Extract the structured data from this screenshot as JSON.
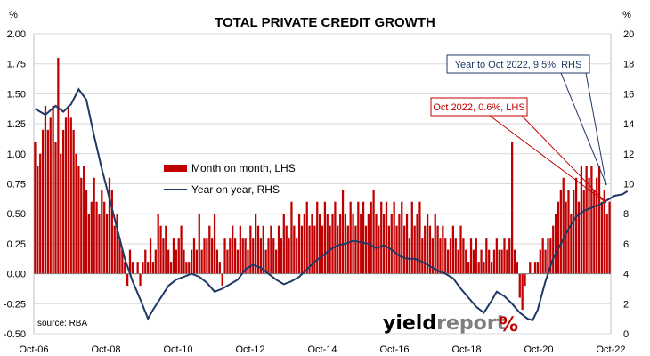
{
  "chart_data": {
    "type": "bar",
    "title": "TOTAL PRIVATE CREDIT GROWTH",
    "left_unit": "%",
    "right_unit": "%",
    "ylim_left": [
      -0.5,
      2.0
    ],
    "ylim_right": [
      0,
      20
    ],
    "left_ticks": [
      "2.00",
      "1.75",
      "1.50",
      "1.25",
      "1.00",
      "0.75",
      "0.50",
      "0.25",
      "0.00",
      "-0.25",
      "-0.50"
    ],
    "right_ticks": [
      "20",
      "18",
      "16",
      "14",
      "12",
      "10",
      "8",
      "6",
      "4",
      "2",
      "0"
    ],
    "x_ticks": [
      "Oct-06",
      "Oct-08",
      "Oct-10",
      "Oct-12",
      "Oct-14",
      "Oct-16",
      "Oct-18",
      "Oct-20",
      "Oct-22"
    ],
    "start_month": "Oct-06",
    "end_month": "Oct-22",
    "grid": true,
    "series": [
      {
        "name": "Month on month, LHS",
        "axis": "left",
        "kind": "bar",
        "color": "#c00000",
        "values": [
          1.1,
          0.9,
          1.0,
          1.2,
          1.4,
          1.2,
          1.3,
          1.4,
          1.1,
          1.8,
          1.0,
          1.2,
          1.3,
          1.4,
          1.3,
          1.2,
          1.0,
          0.9,
          0.8,
          0.9,
          0.7,
          0.5,
          0.6,
          0.8,
          0.6,
          0.5,
          0.7,
          0.6,
          0.5,
          0.8,
          0.7,
          0.4,
          0.5,
          0.3,
          0.2,
          0.1,
          -0.1,
          0.2,
          0.1,
          0.0,
          0.1,
          -0.1,
          0.1,
          0.2,
          0.1,
          0.3,
          0.1,
          0.2,
          0.5,
          0.4,
          0.3,
          0.4,
          0.2,
          0.1,
          0.3,
          0.2,
          0.3,
          0.4,
          0.2,
          0.1,
          0.1,
          0.2,
          0.3,
          0.2,
          0.5,
          0.2,
          0.3,
          0.3,
          0.4,
          0.3,
          0.5,
          0.2,
          0.1,
          -0.1,
          0.3,
          0.2,
          0.3,
          0.4,
          0.3,
          0.2,
          0.4,
          0.3,
          0.3,
          0.2,
          0.4,
          0.3,
          0.5,
          0.4,
          0.3,
          0.4,
          0.2,
          0.3,
          0.4,
          0.3,
          0.2,
          0.4,
          0.3,
          0.5,
          0.4,
          0.3,
          0.6,
          0.4,
          0.3,
          0.5,
          0.4,
          0.5,
          0.6,
          0.4,
          0.5,
          0.4,
          0.6,
          0.5,
          0.4,
          0.6,
          0.5,
          0.4,
          0.5,
          0.6,
          0.4,
          0.5,
          0.7,
          0.5,
          0.4,
          0.6,
          0.5,
          0.4,
          0.6,
          0.5,
          0.6,
          0.4,
          0.5,
          0.6,
          0.7,
          0.5,
          0.4,
          0.6,
          0.5,
          0.6,
          0.4,
          0.5,
          0.6,
          0.4,
          0.5,
          0.6,
          0.4,
          0.5,
          0.3,
          0.6,
          0.4,
          0.5,
          0.6,
          0.3,
          0.4,
          0.5,
          0.4,
          0.3,
          0.5,
          0.4,
          0.3,
          0.4,
          0.3,
          0.2,
          0.3,
          0.4,
          0.3,
          0.2,
          0.4,
          0.3,
          0.2,
          0.1,
          0.3,
          0.2,
          0.3,
          0.1,
          0.2,
          0.1,
          0.3,
          0.2,
          0.1,
          0.2,
          0.3,
          0.2,
          0.2,
          0.3,
          0.2,
          0.3,
          1.1,
          0.2,
          0.1,
          -0.2,
          -0.3,
          -0.1,
          0.0,
          0.1,
          0.0,
          0.1,
          0.1,
          0.2,
          0.3,
          0.2,
          0.3,
          0.3,
          0.4,
          0.5,
          0.6,
          0.7,
          0.8,
          0.6,
          0.7,
          0.5,
          0.7,
          0.8,
          0.6,
          0.9,
          0.7,
          0.9,
          0.8,
          0.9,
          0.7,
          0.8,
          0.9,
          0.6,
          0.7,
          0.5,
          0.6
        ]
      },
      {
        "name": "Year on year, RHS",
        "axis": "right",
        "kind": "line",
        "color": "#1f3864",
        "points": [
          [
            0,
            15.0
          ],
          [
            4,
            14.6
          ],
          [
            8,
            15.2
          ],
          [
            11,
            14.8
          ],
          [
            14,
            15.3
          ],
          [
            17,
            16.3
          ],
          [
            20,
            15.6
          ],
          [
            23,
            13.2
          ],
          [
            26,
            11.0
          ],
          [
            29,
            9.0
          ],
          [
            32,
            7.0
          ],
          [
            35,
            5.0
          ],
          [
            38,
            3.5
          ],
          [
            41,
            2.3
          ],
          [
            44,
            1.0
          ],
          [
            46,
            1.6
          ],
          [
            49,
            2.4
          ],
          [
            52,
            3.2
          ],
          [
            55,
            3.6
          ],
          [
            58,
            3.8
          ],
          [
            61,
            4.0
          ],
          [
            64,
            3.8
          ],
          [
            67,
            3.4
          ],
          [
            70,
            2.8
          ],
          [
            73,
            3.0
          ],
          [
            76,
            3.3
          ],
          [
            79,
            3.6
          ],
          [
            82,
            4.3
          ],
          [
            85,
            4.6
          ],
          [
            88,
            4.4
          ],
          [
            91,
            4.0
          ],
          [
            94,
            3.6
          ],
          [
            97,
            3.3
          ],
          [
            100,
            3.5
          ],
          [
            103,
            3.8
          ],
          [
            106,
            4.3
          ],
          [
            109,
            4.8
          ],
          [
            112,
            5.2
          ],
          [
            115,
            5.6
          ],
          [
            118,
            5.9
          ],
          [
            121,
            6.0
          ],
          [
            124,
            6.2
          ],
          [
            127,
            6.1
          ],
          [
            130,
            6.0
          ],
          [
            133,
            5.7
          ],
          [
            136,
            5.9
          ],
          [
            139,
            5.6
          ],
          [
            142,
            5.2
          ],
          [
            145,
            5.0
          ],
          [
            148,
            5.0
          ],
          [
            151,
            4.8
          ],
          [
            154,
            4.5
          ],
          [
            157,
            4.2
          ],
          [
            160,
            4.0
          ],
          [
            163,
            3.7
          ],
          [
            166,
            3.0
          ],
          [
            169,
            2.4
          ],
          [
            172,
            1.8
          ],
          [
            175,
            1.4
          ],
          [
            178,
            2.2
          ],
          [
            180,
            2.8
          ],
          [
            183,
            2.5
          ],
          [
            186,
            2.0
          ],
          [
            189,
            1.4
          ],
          [
            192,
            1.0
          ],
          [
            194,
            0.9
          ],
          [
            196,
            1.6
          ],
          [
            199,
            3.5
          ],
          [
            202,
            5.0
          ],
          [
            205,
            6.0
          ],
          [
            208,
            7.0
          ],
          [
            211,
            7.8
          ],
          [
            214,
            8.2
          ],
          [
            217,
            8.4
          ],
          [
            220,
            8.6
          ],
          [
            223,
            8.9
          ],
          [
            226,
            9.2
          ],
          [
            229,
            9.3
          ],
          [
            231,
            9.5
          ]
        ]
      }
    ],
    "annotations": [
      {
        "text": "Year to Oct 2022, 9.5%, RHS",
        "color": "#1f3864"
      },
      {
        "text": "Oct 2022, 0.6%, LHS",
        "color": "#c00000"
      }
    ],
    "source": "source: RBA"
  },
  "brand": {
    "part1": "yield",
    "part2": "report",
    "symbol": "%"
  }
}
